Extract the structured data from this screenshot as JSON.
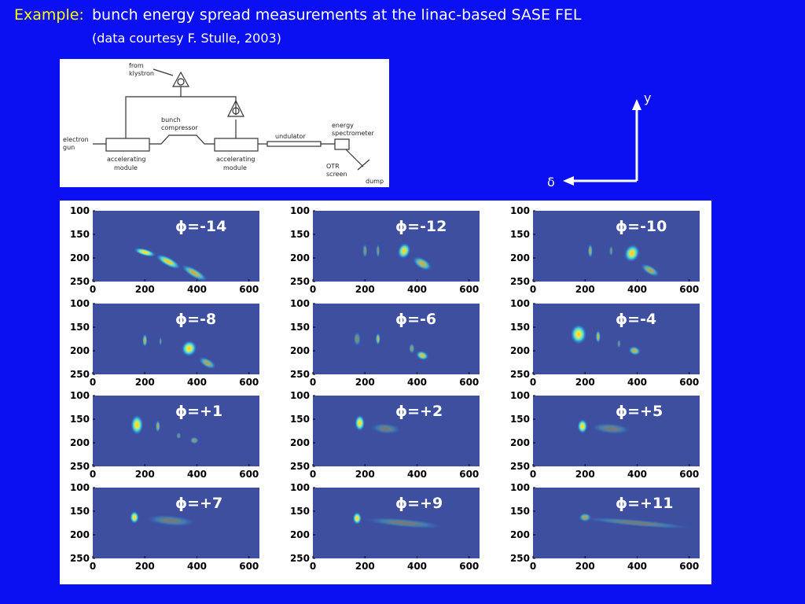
{
  "title": {
    "prefix": "Example:",
    "text": "bunch energy spread measurements at the linac-based SASE FEL",
    "subtitle": "(data courtesy F. Stulle, 2003)"
  },
  "diagram": {
    "from_klystron": [
      "from",
      "klystron"
    ],
    "bunch_compressor": [
      "bunch",
      "compressor"
    ],
    "electron_gun": [
      "electron",
      "gun"
    ],
    "accelerating_module_1": [
      "accelerating",
      "module"
    ],
    "accelerating_module_2": [
      "accelerating",
      "module"
    ],
    "undulator": "undulator",
    "energy_spectrometer": [
      "energy",
      "spectrometer"
    ],
    "otr_screen": [
      "OTR",
      "screen"
    ],
    "dump": "dump"
  },
  "axes_legend": {
    "vertical": "y",
    "horizontal": "δ"
  },
  "panels": {
    "yticks": [
      100,
      150,
      200,
      250
    ],
    "xticks": [
      0,
      200,
      400,
      600
    ],
    "labels": [
      "ϕ=-14",
      "ϕ=-12",
      "ϕ=-10",
      "ϕ=-8",
      "ϕ=-6",
      "ϕ=-4",
      "ϕ=+1",
      "ϕ=+2",
      "ϕ=+5",
      "ϕ=+7",
      "ϕ=+9",
      "ϕ=+11"
    ]
  }
}
